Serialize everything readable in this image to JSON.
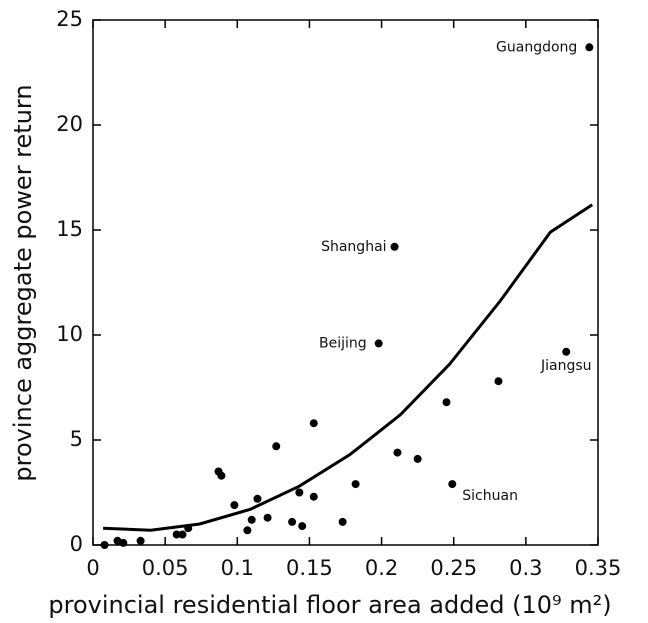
{
  "chart_data": {
    "type": "scatter",
    "x_label": "provincial residential floor area added (10⁹ m²)",
    "y_label": "province aggregate power return",
    "xlim": [
      0,
      0.35
    ],
    "ylim": [
      0,
      25
    ],
    "xticks": [
      0,
      0.05,
      0.1,
      0.15,
      0.2,
      0.25,
      0.3,
      0.35
    ],
    "yticks": [
      0,
      5,
      10,
      15,
      20,
      25
    ],
    "color": "#000000",
    "series": [
      {
        "x": [
          0.344,
          0.209,
          0.198,
          0.328,
          0.249,
          0.281,
          0.245,
          0.211,
          0.225,
          0.153,
          0.127,
          0.087,
          0.089,
          0.098,
          0.114,
          0.121,
          0.11,
          0.107,
          0.143,
          0.153,
          0.182,
          0.138,
          0.145,
          0.173,
          0.008,
          0.017,
          0.021,
          0.033,
          0.058,
          0.062,
          0.066
        ],
        "values": [
          23.7,
          14.2,
          9.6,
          9.2,
          2.9,
          7.8,
          6.8,
          4.4,
          4.1,
          5.8,
          4.7,
          3.5,
          3.3,
          1.9,
          2.2,
          1.3,
          1.2,
          0.7,
          2.5,
          2.3,
          2.9,
          1.1,
          0.9,
          1.1,
          0.0,
          0.2,
          0.1,
          0.2,
          0.5,
          0.5,
          0.8
        ],
        "labels": [
          "Guangdong",
          "Shanghai",
          "Beijing",
          "Jiangsu",
          "Sichuan",
          null,
          null,
          null,
          null,
          null,
          null,
          null,
          null,
          null,
          null,
          null,
          null,
          null,
          null,
          null,
          null,
          null,
          null,
          null,
          null,
          null,
          null,
          null,
          null,
          null,
          null
        ]
      },
      {
        "type": "line",
        "x": [
          0.007,
          0.04,
          0.074,
          0.109,
          0.143,
          0.178,
          0.213,
          0.247,
          0.282,
          0.317,
          0.346
        ],
        "values": [
          0.8,
          0.7,
          1.0,
          1.7,
          2.8,
          4.3,
          6.2,
          8.6,
          11.6,
          14.9,
          16.2
        ]
      }
    ]
  }
}
